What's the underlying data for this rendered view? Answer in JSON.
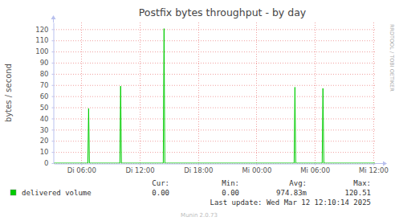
{
  "chart_data": {
    "type": "line",
    "title": "Postfix bytes throughput - by day",
    "y_label": "bytes / second",
    "side_text": "RRDTOOL / TOBI OETIKER",
    "x": [
      3.17,
      6.67,
      6.75,
      6.83,
      9.96,
      10.04,
      10.12,
      14.42,
      14.5,
      14.58,
      27.87,
      27.95,
      28.03,
      30.75,
      30.83,
      30.92,
      36.17
    ],
    "xlim": [
      3.17,
      36.17
    ],
    "xticks": [
      {
        "value": 6,
        "label": "Di 06:00"
      },
      {
        "value": 12,
        "label": "Di 12:00"
      },
      {
        "value": 18,
        "label": "Di 18:00"
      },
      {
        "value": 24,
        "label": "Mi 00:00"
      },
      {
        "value": 30,
        "label": "Mi 06:00"
      },
      {
        "value": 36,
        "label": "Mi 12:00"
      }
    ],
    "ylim": [
      0,
      126
    ],
    "yticks": [
      0,
      10,
      20,
      30,
      40,
      50,
      60,
      70,
      80,
      90,
      100,
      110,
      120
    ],
    "grid": true,
    "legend": "bottom",
    "series": [
      {
        "name": "delivered volume",
        "color": "#00cc00",
        "values": [
          0,
          0,
          49,
          0,
          0,
          69,
          0,
          0,
          120.51,
          0,
          0,
          68,
          0,
          0,
          67,
          0,
          0
        ],
        "stats": [
          {
            "header": "Cur:",
            "value": 0,
            "label": "0.00"
          },
          {
            "header": "Min:",
            "value": 0,
            "label": "0.00"
          },
          {
            "header": "Avg:",
            "value": 0.97483,
            "label": "974.83m"
          },
          {
            "header": "Max:",
            "value": 120.51,
            "label": "120.51"
          }
        ]
      }
    ],
    "footer": "Last update: Wed Mar 12 12:10:14 2025",
    "credit": "Munin 2.0.73"
  }
}
